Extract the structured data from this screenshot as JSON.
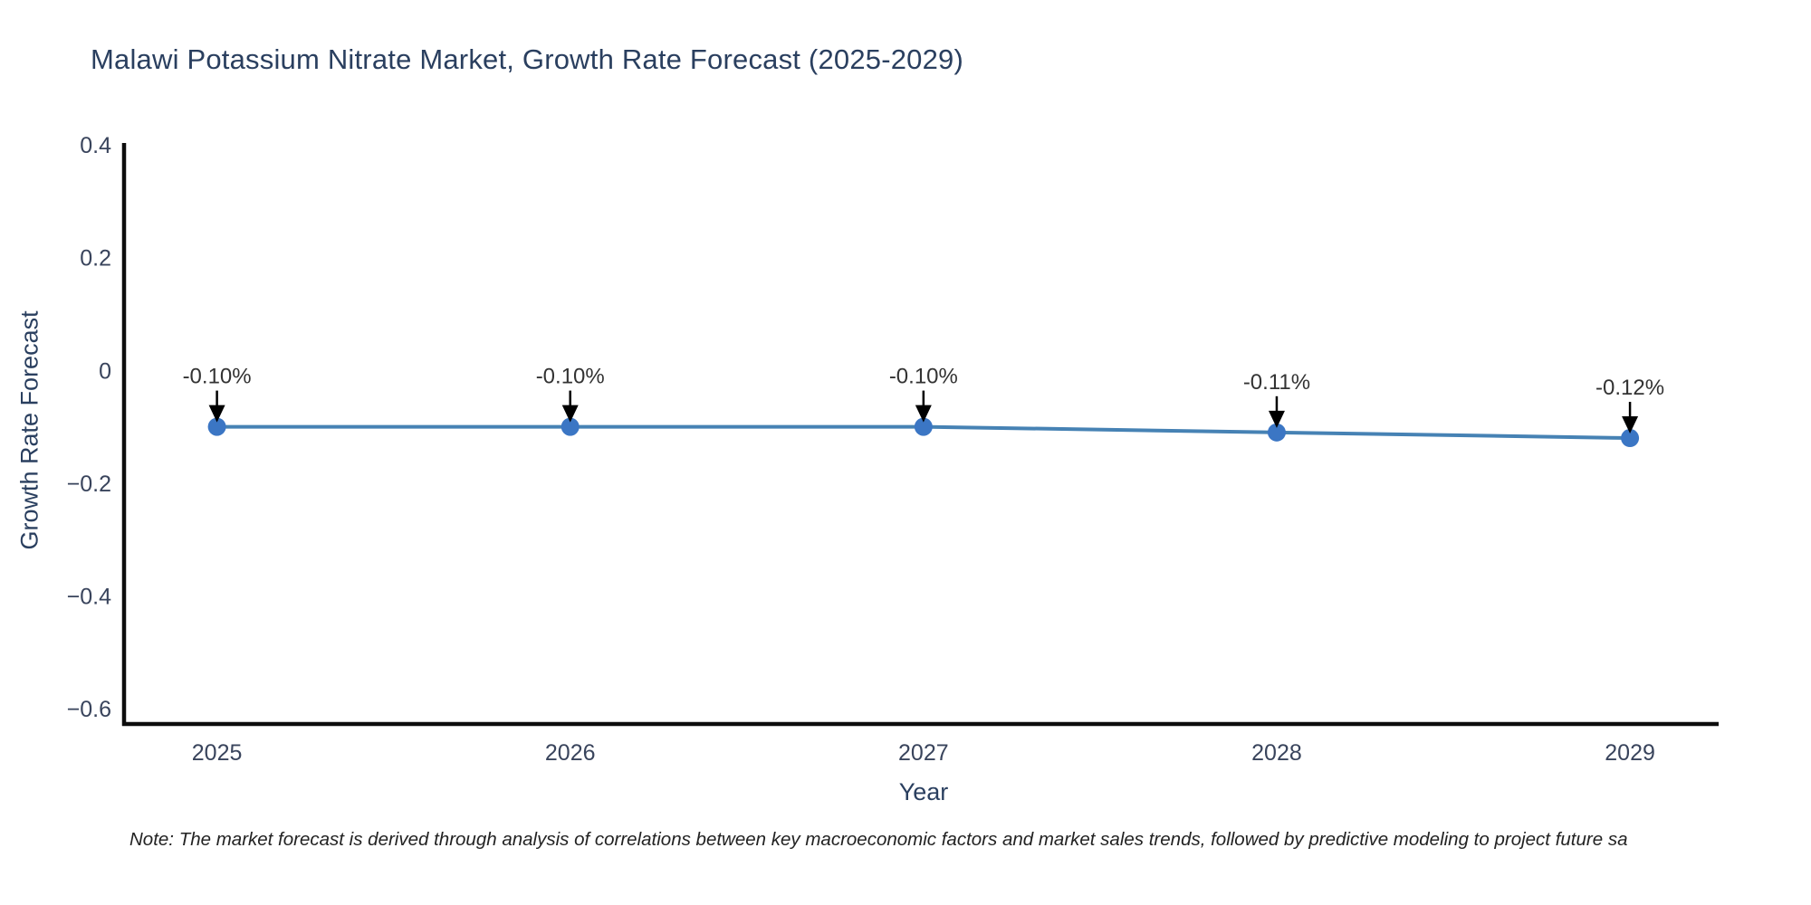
{
  "title": "Malawi Potassium Nitrate Market, Growth Rate Forecast (2025-2029)",
  "note": "Note: The market forecast is derived through analysis of correlations between key macroeconomic factors and market sales trends, followed by predictive modeling to project future sa",
  "chart_data": {
    "type": "line",
    "title": "Malawi Potassium Nitrate Market, Growth Rate Forecast (2025-2029)",
    "xlabel": "Year",
    "ylabel": "Growth Rate Forecast",
    "x": [
      2025,
      2026,
      2027,
      2028,
      2029
    ],
    "values": [
      -0.1,
      -0.1,
      -0.1,
      -0.11,
      -0.12
    ],
    "point_labels": [
      "-0.10%",
      "-0.10%",
      "-0.10%",
      "-0.11%",
      "-0.12%"
    ],
    "x_tick_labels": [
      "2025",
      "2026",
      "2027",
      "2028",
      "2029"
    ],
    "y_tick_labels": [
      "0.4",
      "0.2",
      "0",
      "−0.2",
      "−0.4",
      "−0.6"
    ],
    "y_tick_values": [
      0.4,
      0.2,
      0,
      -0.2,
      -0.4,
      -0.6
    ],
    "xlim": [
      2024.737,
      2029.251
    ],
    "ylim": [
      -0.627,
      0.4
    ],
    "grid": false,
    "legend": "none",
    "annotation_style": "text-with-down-arrow",
    "colors": {
      "line": "#4682b4",
      "marker": "#3b76c4",
      "axis": "#0d0d0d",
      "tick_text": "#39445c",
      "annotation_text": "#333333",
      "arrow": "#000000"
    }
  }
}
